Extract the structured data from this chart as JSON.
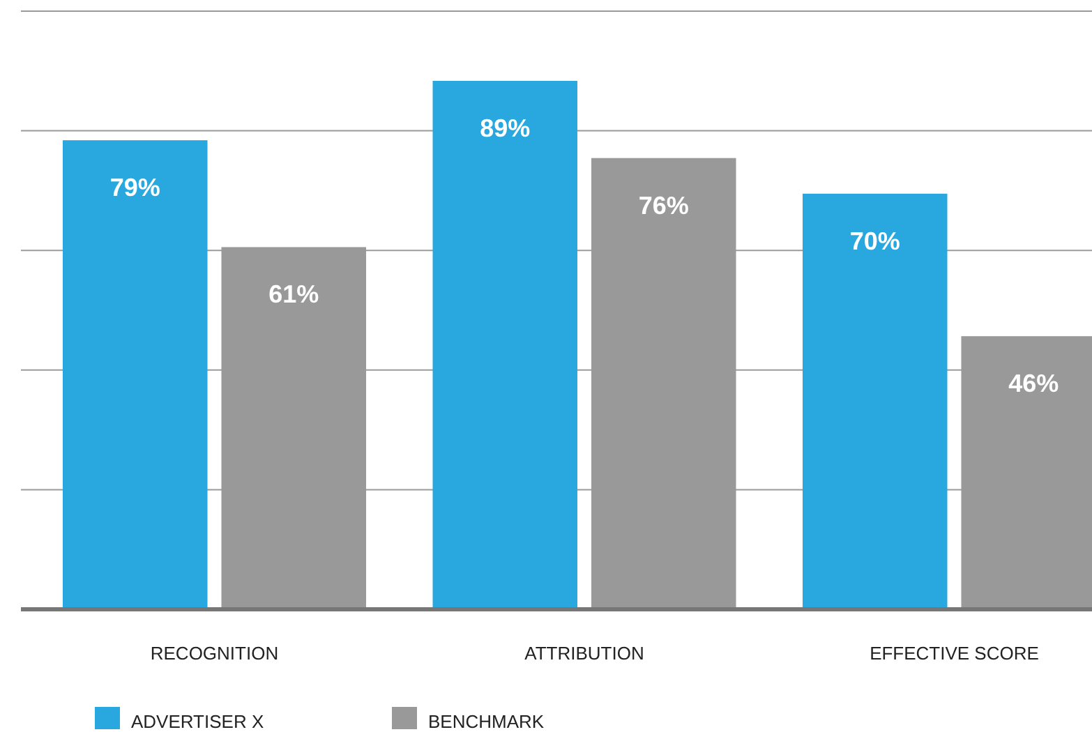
{
  "chart_data": {
    "type": "bar",
    "categories": [
      "RECOGNITION",
      "ATTRIBUTION",
      "EFFECTIVE SCORE"
    ],
    "series": [
      {
        "name": "ADVERTISER X",
        "color": "#29a8e0",
        "values": [
          79,
          89,
          70
        ],
        "value_labels": [
          "79%",
          "89%",
          "70%"
        ]
      },
      {
        "name": "BENCHMARK",
        "color": "#999999",
        "values": [
          61,
          76,
          46
        ],
        "value_labels": [
          "61%",
          "76%",
          "46%"
        ]
      }
    ],
    "grid": "y",
    "tick_labels": "x",
    "legend": "bottom left"
  }
}
